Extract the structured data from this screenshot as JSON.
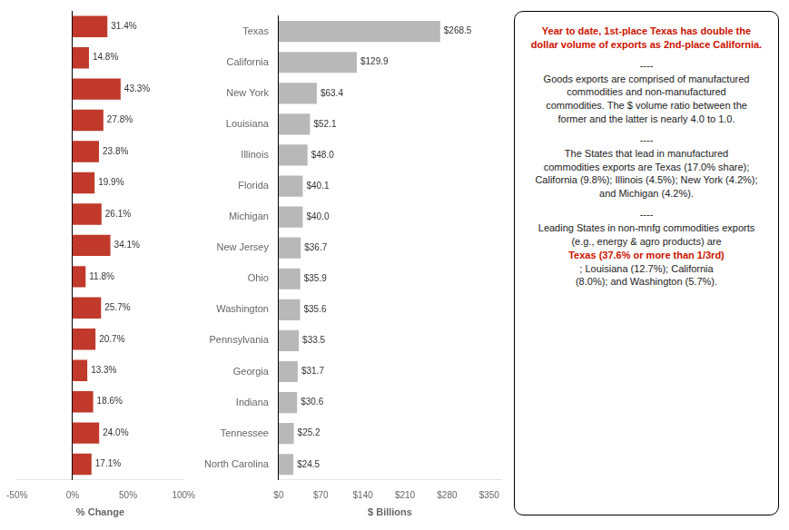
{
  "chart_data": [
    {
      "type": "bar",
      "orientation": "horizontal",
      "categories": [
        "Texas",
        "California",
        "New York",
        "Louisiana",
        "Illinois",
        "Florida",
        "Michigan",
        "New Jersey",
        "Ohio",
        "Washington",
        "Pennsylvania",
        "Georgia",
        "Indiana",
        "Tennessee",
        "North Carolina"
      ],
      "values": [
        31.4,
        14.8,
        43.3,
        27.8,
        23.8,
        19.9,
        26.1,
        34.1,
        11.8,
        25.7,
        20.7,
        13.3,
        18.6,
        24.0,
        17.1
      ],
      "value_labels": [
        "31.4%",
        "14.8%",
        "43.3%",
        "27.8%",
        "23.8%",
        "19.9%",
        "26.1%",
        "34.1%",
        "11.8%",
        "25.7%",
        "20.7%",
        "13.3%",
        "18.6%",
        "24.0%",
        "17.1%"
      ],
      "data_labels": true,
      "color": "#c0392b",
      "xlabel": "% Change",
      "xlim": [
        -50,
        100
      ],
      "xticks": [
        {
          "value": -50,
          "label": "-50%"
        },
        {
          "value": 0,
          "label": "0%"
        },
        {
          "value": 50,
          "label": "50%"
        },
        {
          "value": 100,
          "label": "100%"
        }
      ],
      "grid": false,
      "tick_labels": "x"
    },
    {
      "type": "bar",
      "orientation": "horizontal",
      "categories": [
        "Texas",
        "California",
        "New York",
        "Louisiana",
        "Illinois",
        "Florida",
        "Michigan",
        "New Jersey",
        "Ohio",
        "Washington",
        "Pennsylvania",
        "Georgia",
        "Indiana",
        "Tennessee",
        "North Carolina"
      ],
      "values": [
        268.5,
        129.9,
        63.4,
        52.1,
        48.0,
        40.1,
        40.0,
        36.7,
        35.9,
        35.6,
        33.5,
        31.7,
        30.6,
        25.2,
        24.5
      ],
      "value_labels": [
        "$268.5",
        "$129.9",
        "$63.4",
        "$52.1",
        "$48.0",
        "$40.1",
        "$40.0",
        "$36.7",
        "$35.9",
        "$35.6",
        "$33.5",
        "$31.7",
        "$30.6",
        "$25.2",
        "$24.5"
      ],
      "data_labels": true,
      "color": "#b8b8b8",
      "xlabel": "$ Billions",
      "xlim": [
        0,
        370
      ],
      "xticks": [
        {
          "value": 0,
          "label": "$0"
        },
        {
          "value": 70,
          "label": "$70"
        },
        {
          "value": 140,
          "label": "$140"
        },
        {
          "value": 210,
          "label": "$210"
        },
        {
          "value": 280,
          "label": "$280"
        },
        {
          "value": 350,
          "label": "$350"
        }
      ],
      "grid": false,
      "annotations": [
        {
          "text": "Year to date, 1st-place Texas has double the\ndollar volume of exports as 2nd-place California.",
          "color": "#cc1100"
        },
        {
          "text": "----\nGoods exports are comprised of manufactured\ncommodities and non-manufactured\ncommodities. The $ volume ratio between the\nformer and the latter is nearly 4.0 to 1.0.",
          "color": "#222222"
        },
        {
          "text": "----\nThe States that lead in manufactured\ncommodities exports are Texas (17.0% share);\nCalifornia (9.8%); Illinois (4.5%); New York (4.2%);\nand Michigan (4.2%).",
          "color": "#222222"
        },
        {
          "text": "----\nLeading States in non-mnfg commodities exports\n(e.g., energy & agro products) are",
          "color": "#222222"
        },
        {
          "text": "Texas (37.6% or more than 1/3rd)",
          "color": "#cc1100"
        },
        {
          "text": "; Louisiana (12.7%); California\n(8.0%); and Washington (5.7%).",
          "color": "#222222"
        }
      ]
    }
  ]
}
